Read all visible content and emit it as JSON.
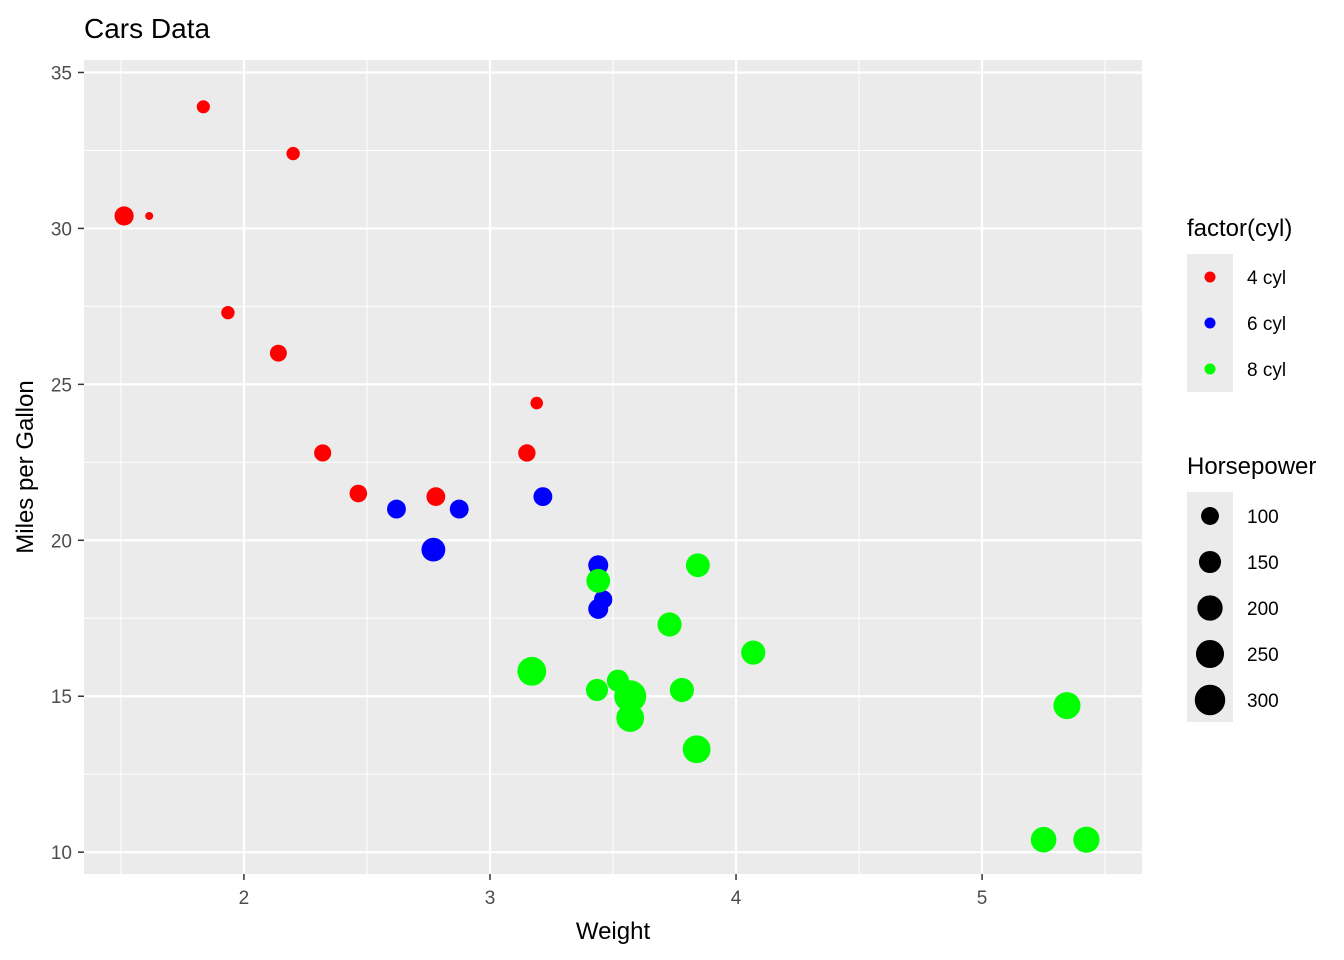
{
  "chart_data": {
    "type": "scatter",
    "title": "Cars Data",
    "xlabel": "Weight",
    "ylabel": "Miles per Gallon",
    "xlim": [
      1.35,
      5.65
    ],
    "ylim": [
      9.3,
      35.4
    ],
    "x_ticks": [
      2,
      3,
      4,
      5
    ],
    "y_ticks": [
      10,
      15,
      20,
      25,
      30,
      35
    ],
    "grid": true,
    "panel_background": "#ebebeb",
    "legend_position": "right",
    "color_legend": {
      "title": "factor(cyl)",
      "entries": [
        {
          "label": "4 cyl",
          "color": "#ff0000"
        },
        {
          "label": "6 cyl",
          "color": "#0000ff"
        },
        {
          "label": "8 cyl",
          "color": "#00ff00"
        }
      ]
    },
    "size_legend": {
      "title": "Horsepower",
      "entries": [
        {
          "label": "100",
          "value": 100
        },
        {
          "label": "150",
          "value": 150
        },
        {
          "label": "200",
          "value": 200
        },
        {
          "label": "250",
          "value": 250
        },
        {
          "label": "300",
          "value": 300
        }
      ]
    },
    "series": [
      {
        "name": "4 cyl",
        "color": "#ff0000",
        "points": [
          {
            "x": 2.32,
            "y": 22.8,
            "hp": 93
          },
          {
            "x": 3.19,
            "y": 24.4,
            "hp": 62
          },
          {
            "x": 3.15,
            "y": 22.8,
            "hp": 95
          },
          {
            "x": 2.2,
            "y": 32.4,
            "hp": 66
          },
          {
            "x": 1.615,
            "y": 30.4,
            "hp": 52
          },
          {
            "x": 1.835,
            "y": 33.9,
            "hp": 65
          },
          {
            "x": 2.465,
            "y": 21.5,
            "hp": 97
          },
          {
            "x": 1.935,
            "y": 27.3,
            "hp": 66
          },
          {
            "x": 2.14,
            "y": 26.0,
            "hp": 91
          },
          {
            "x": 1.513,
            "y": 30.4,
            "hp": 113
          },
          {
            "x": 2.78,
            "y": 21.4,
            "hp": 109
          }
        ]
      },
      {
        "name": "6 cyl",
        "color": "#0000ff",
        "points": [
          {
            "x": 2.62,
            "y": 21.0,
            "hp": 110
          },
          {
            "x": 2.875,
            "y": 21.0,
            "hp": 110
          },
          {
            "x": 3.215,
            "y": 21.4,
            "hp": 110
          },
          {
            "x": 3.46,
            "y": 18.1,
            "hp": 105
          },
          {
            "x": 3.44,
            "y": 19.2,
            "hp": 123
          },
          {
            "x": 3.44,
            "y": 17.8,
            "hp": 123
          },
          {
            "x": 2.77,
            "y": 19.7,
            "hp": 175
          }
        ]
      },
      {
        "name": "8 cyl",
        "color": "#00ff00",
        "points": [
          {
            "x": 3.44,
            "y": 18.7,
            "hp": 175
          },
          {
            "x": 3.57,
            "y": 14.3,
            "hp": 245
          },
          {
            "x": 4.07,
            "y": 16.4,
            "hp": 180
          },
          {
            "x": 3.73,
            "y": 17.3,
            "hp": 180
          },
          {
            "x": 3.78,
            "y": 15.2,
            "hp": 180
          },
          {
            "x": 5.25,
            "y": 10.4,
            "hp": 205
          },
          {
            "x": 5.424,
            "y": 10.4,
            "hp": 215
          },
          {
            "x": 5.345,
            "y": 14.7,
            "hp": 230
          },
          {
            "x": 3.52,
            "y": 15.5,
            "hp": 150
          },
          {
            "x": 3.435,
            "y": 15.2,
            "hp": 150
          },
          {
            "x": 3.84,
            "y": 13.3,
            "hp": 245
          },
          {
            "x": 3.845,
            "y": 19.2,
            "hp": 175
          },
          {
            "x": 3.17,
            "y": 15.8,
            "hp": 264
          },
          {
            "x": 3.57,
            "y": 15.0,
            "hp": 335
          }
        ]
      }
    ]
  }
}
